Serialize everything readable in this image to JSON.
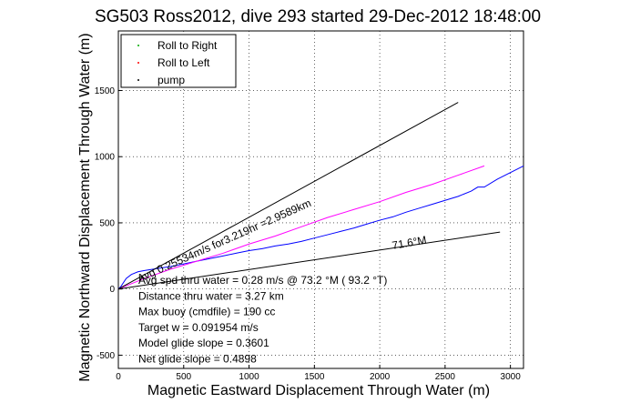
{
  "chart_data": {
    "type": "line",
    "title": "SG503 Ross2012, dive 293 started 29-Dec-2012 18:48:00",
    "xlabel": "Magnetic Eastward Displacement Through Water (m)",
    "ylabel": "Magnetic Northward Displacement Through Water (m)",
    "xlim": [
      0,
      3100
    ],
    "ylim": [
      -600,
      1950
    ],
    "xticks": [
      0,
      500,
      1000,
      1500,
      2000,
      2500,
      3000
    ],
    "yticks": [
      -500,
      0,
      500,
      1000,
      1500
    ],
    "grid": "dotted",
    "legend": {
      "placement": "top-left",
      "items": [
        {
          "label": "Roll to Right",
          "color": "#00aa00"
        },
        {
          "label": "Roll to Left",
          "color": "#ff0000"
        },
        {
          "label": "pump",
          "color": "#000000"
        }
      ]
    },
    "series": [
      {
        "name": "track",
        "color": "#0000ff",
        "x": [
          0,
          20,
          60,
          100,
          150,
          200,
          300,
          400,
          500,
          600,
          700,
          800,
          900,
          1000,
          1100,
          1200,
          1300,
          1400,
          1500,
          1600,
          1700,
          1800,
          1900,
          2000,
          2100,
          2200,
          2300,
          2400,
          2500,
          2600,
          2700,
          2750,
          2800,
          2900,
          3000,
          3100
        ],
        "y": [
          0,
          20,
          80,
          110,
          130,
          140,
          155,
          170,
          190,
          210,
          230,
          250,
          270,
          290,
          305,
          325,
          340,
          360,
          385,
          410,
          435,
          460,
          490,
          520,
          545,
          580,
          610,
          640,
          670,
          700,
          740,
          770,
          770,
          830,
          880,
          930
        ]
      },
      {
        "name": "heading",
        "color": "#ff00ff",
        "x": [
          0,
          200,
          400,
          600,
          800,
          1000,
          1200,
          1400,
          1600,
          1800,
          2000,
          2200,
          2400,
          2600,
          2800
        ],
        "y": [
          0,
          80,
          150,
          210,
          270,
          340,
          400,
          470,
          540,
          600,
          660,
          730,
          790,
          860,
          930
        ]
      },
      {
        "name": "bound-upper",
        "color": "#000000",
        "x": [
          0,
          2600
        ],
        "y": [
          0,
          1410
        ]
      },
      {
        "name": "bound-lower",
        "color": "#000000",
        "x": [
          0,
          2920
        ],
        "y": [
          0,
          430
        ]
      }
    ],
    "annotations": [
      {
        "text": "Avg 0.25534m/s for3.219hr =2.9589km",
        "x": 160,
        "y": 50,
        "angle": -24
      },
      {
        "text": "71.6°M",
        "x": 2100,
        "y": 300,
        "angle": -10
      },
      {
        "text": "73.2°M",
        "x": 160,
        "y": 50,
        "angle": -24
      }
    ],
    "info_lines": [
      "Avg spd thru water =  0.28 m/s @  73.2   °M ( 93.2 °T)",
      "Distance thru water =  3.27 km",
      "Max buoy (cmdfile) = 190 cc",
      "Target w = 0.091954 m/s",
      "Model glide slope = 0.3601",
      "Net glide slope = 0.4898"
    ]
  }
}
